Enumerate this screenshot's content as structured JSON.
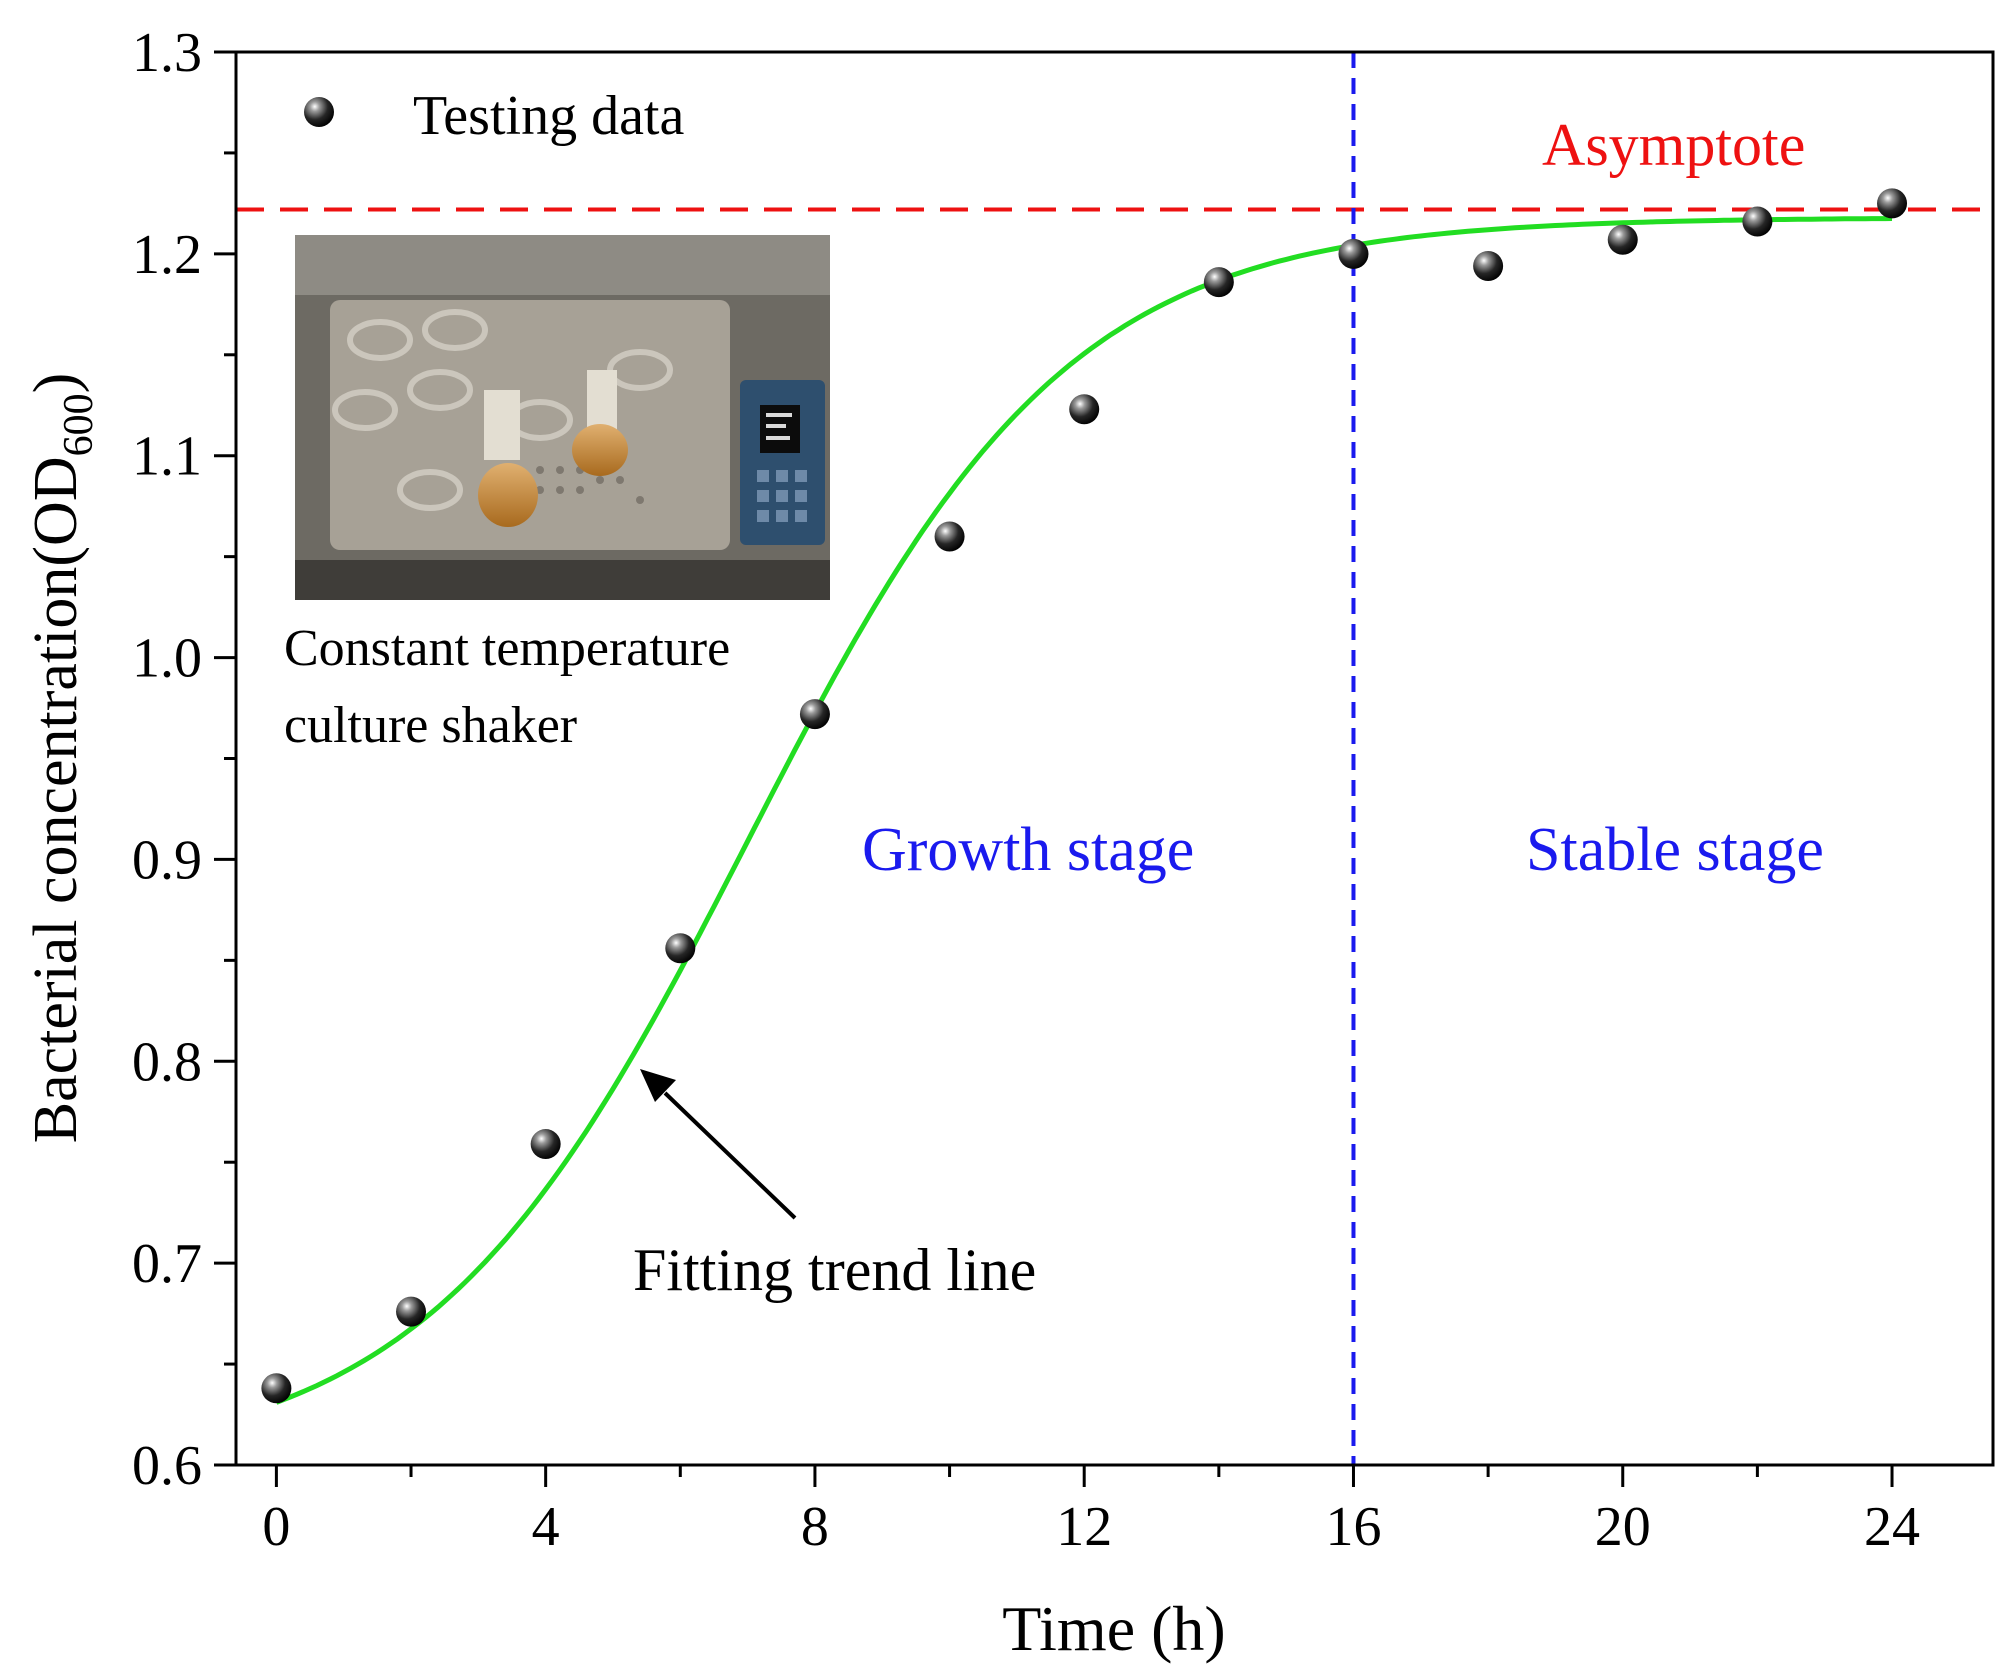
{
  "chart_data": {
    "type": "scatter",
    "xlabel": "Time (h)",
    "ylabel": "Bacterial concentration(OD",
    "ylabel_subscript": "600",
    "ylabel_close": ")",
    "xlim": [
      -0.6,
      25.5
    ],
    "ylim": [
      0.6,
      1.3
    ],
    "xticks": [
      0,
      4,
      8,
      12,
      16,
      20,
      24
    ],
    "xticks_minor": [
      2,
      6,
      10,
      14,
      18,
      22
    ],
    "yticks": [
      0.6,
      0.7,
      0.8,
      0.9,
      1.0,
      1.1,
      1.2,
      1.3
    ],
    "ytick_labels": [
      "0.6",
      "0.7",
      "0.8",
      "0.9",
      "1.0",
      "1.1",
      "1.2",
      "1.3"
    ],
    "series": [
      {
        "name": "Testing data",
        "kind": "points",
        "x": [
          0,
          2,
          4,
          6,
          8,
          10,
          12,
          14,
          16,
          18,
          20,
          22,
          24
        ],
        "y": [
          0.638,
          0.676,
          0.759,
          0.856,
          0.972,
          1.06,
          1.123,
          1.186,
          1.2,
          1.194,
          1.207,
          1.216,
          1.225
        ]
      },
      {
        "name": "Fitting trend line",
        "kind": "logistic-fit",
        "color": "#22dd22",
        "params": {
          "y0": 0.6,
          "A": 0.618,
          "k": 0.42,
          "x0": 7.0
        },
        "x_range": [
          0,
          24
        ]
      }
    ],
    "reference_lines": [
      {
        "name": "Asymptote",
        "orientation": "horizontal",
        "value": 1.222,
        "color": "#ee1111",
        "style": "dashed"
      },
      {
        "name": "Stage boundary",
        "orientation": "vertical",
        "value": 16,
        "color": "#1a1aee",
        "style": "dashed"
      }
    ],
    "annotations": {
      "legend_label": "Testing data",
      "asymptote_label": "Asymptote",
      "fit_label": "Fitting trend line",
      "growth_label": "Growth stage",
      "stable_label": "Stable stage",
      "inset_caption_line1": "Constant temperature",
      "inset_caption_line2": "culture shaker"
    },
    "colors": {
      "asymptote": "#ee1111",
      "stage_text": "#1a1aee",
      "fit_line": "#22dd22",
      "axis": "#000000"
    }
  }
}
